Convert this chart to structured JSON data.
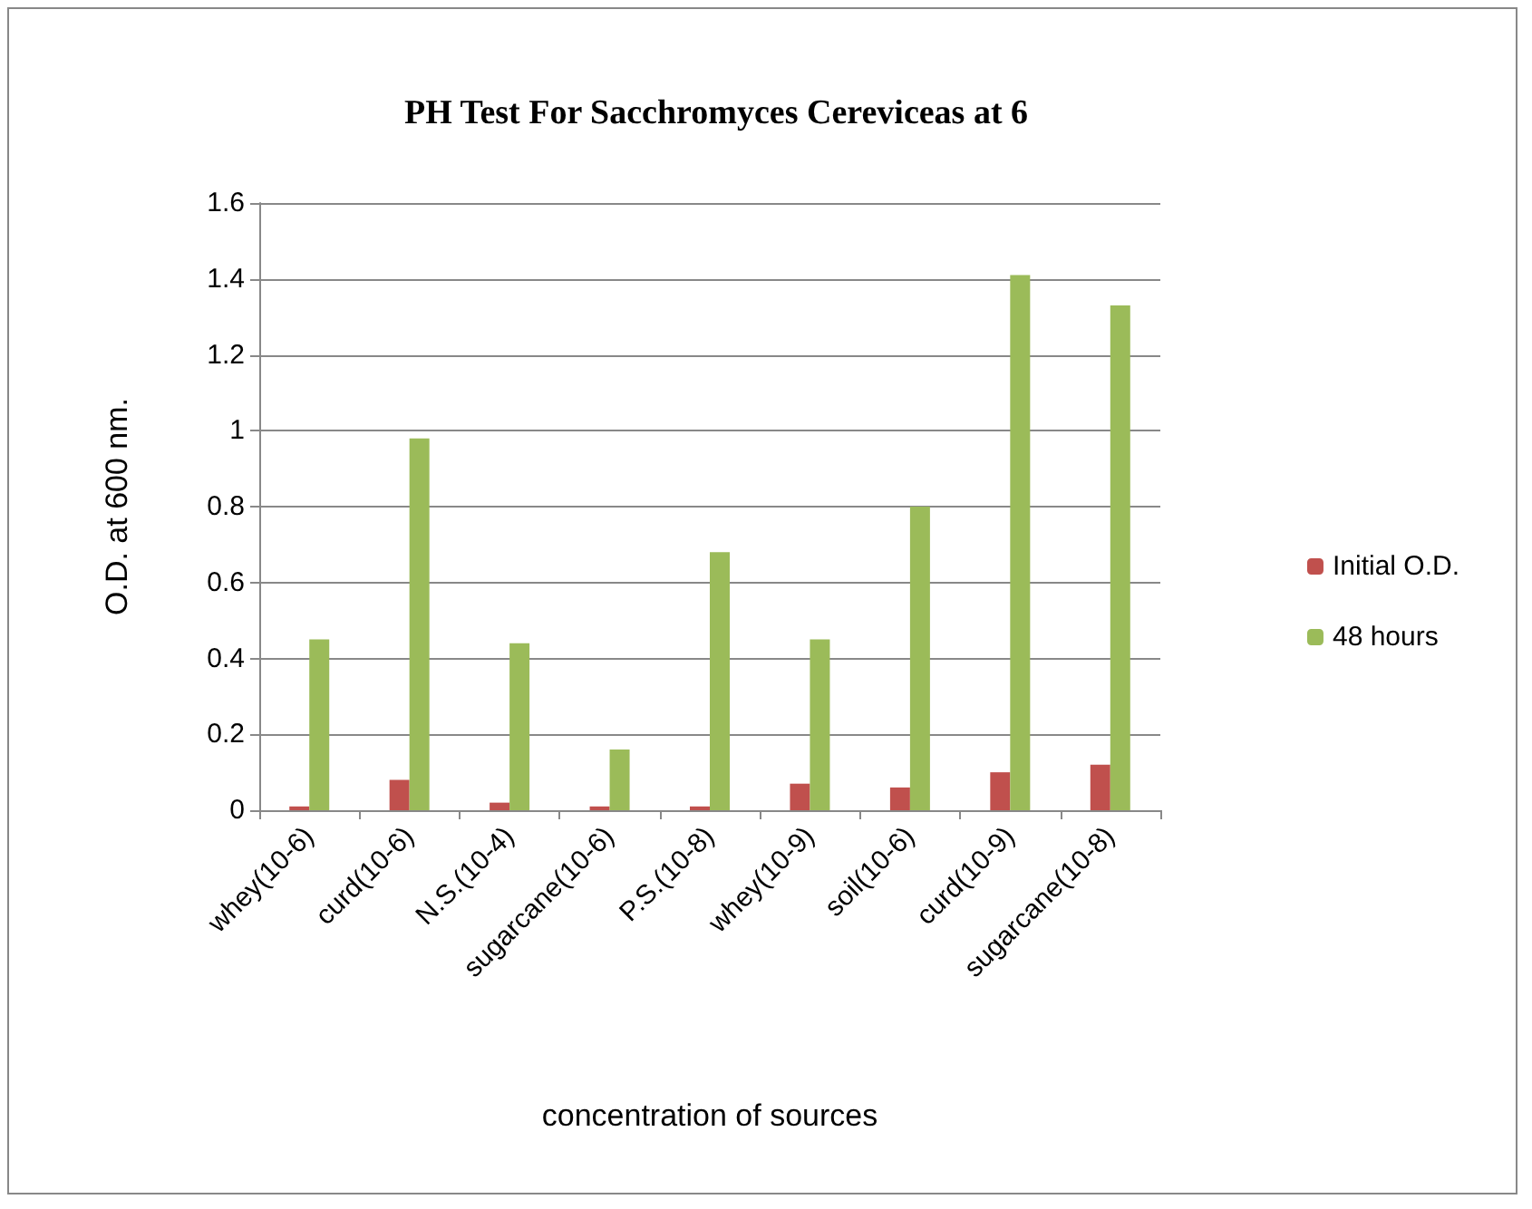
{
  "chart_data": {
    "type": "bar",
    "title": "PH Test For Sacchromyces Cereviceas at 6",
    "xlabel": "concentration of sources",
    "ylabel": "O.D. at 600 nm.",
    "categories": [
      "whey(10-6)",
      "curd(10-6)",
      "N.S.(10-4)",
      "sugarcane(10-6)",
      "P.S.(10-8)",
      "whey(10-9)",
      "soil(10-6)",
      "curd(10-9)",
      "sugarcane(10-8)"
    ],
    "series": [
      {
        "name": "Initial O.D.",
        "color": "#c0504d",
        "values": [
          0.01,
          0.08,
          0.02,
          0.01,
          0.01,
          0.07,
          0.06,
          0.1,
          0.12
        ]
      },
      {
        "name": "48 hours",
        "color": "#9bbb59",
        "values": [
          0.45,
          0.98,
          0.44,
          0.16,
          0.68,
          0.45,
          0.8,
          1.41,
          1.33
        ]
      }
    ],
    "ylim": [
      0,
      1.6
    ],
    "yticks": [
      0,
      0.2,
      0.4,
      0.6,
      0.8,
      1,
      1.2,
      1.4,
      1.6
    ],
    "grid": "y",
    "legend": "right"
  }
}
